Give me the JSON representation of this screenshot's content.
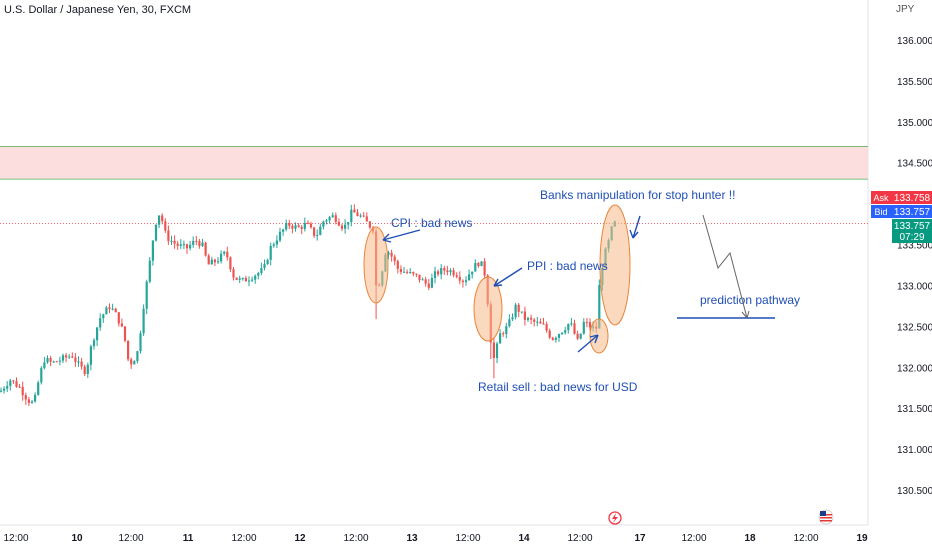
{
  "symbol_title": "U.S. Dollar / Japanese Yen, 30, FXCM",
  "currency_label": "JPY",
  "colors": {
    "up": "#26a69a",
    "down": "#ef5350",
    "annotation": "#1f4fb5",
    "highlight_fill": "#f6b98a",
    "highlight_stroke": "#e8863c",
    "resistance_zone": "#fcdede",
    "ask": "#f23645",
    "bid": "#2962ff",
    "last": "#089981"
  },
  "chart_data": {
    "type": "candlestick",
    "title": "U.S. Dollar / Japanese Yen, 30, FXCM",
    "y_axis": {
      "ticks": [
        "136.000",
        "135.500",
        "135.000",
        "134.500",
        "133.500",
        "133.000",
        "132.500",
        "132.000",
        "131.500",
        "131.000",
        "130.500"
      ],
      "range": [
        130.3,
        136.3
      ]
    },
    "x_axis": {
      "ticks": [
        "12:00",
        "10",
        "12:00",
        "11",
        "12:00",
        "12",
        "12:00",
        "13",
        "12:00",
        "14",
        "12:00",
        "17",
        "12:00",
        "18",
        "12:00",
        "19"
      ]
    },
    "price_path": [
      [
        0,
        131.7
      ],
      [
        10,
        131.85
      ],
      [
        20,
        131.75
      ],
      [
        28,
        131.6
      ],
      [
        34,
        131.55
      ],
      [
        38,
        131.8
      ],
      [
        44,
        132.1
      ],
      [
        52,
        132.05
      ],
      [
        62,
        132.1
      ],
      [
        72,
        132.15
      ],
      [
        80,
        132.0
      ],
      [
        86,
        131.95
      ],
      [
        92,
        132.3
      ],
      [
        100,
        132.6
      ],
      [
        110,
        132.75
      ],
      [
        118,
        132.6
      ],
      [
        124,
        132.4
      ],
      [
        128,
        132.1
      ],
      [
        132,
        132.05
      ],
      [
        138,
        132.2
      ],
      [
        144,
        132.8
      ],
      [
        150,
        133.3
      ],
      [
        155,
        133.75
      ],
      [
        160,
        133.9
      ],
      [
        166,
        133.6
      ],
      [
        176,
        133.5
      ],
      [
        186,
        133.45
      ],
      [
        196,
        133.55
      ],
      [
        202,
        133.5
      ],
      [
        208,
        133.25
      ],
      [
        216,
        133.3
      ],
      [
        226,
        133.4
      ],
      [
        234,
        133.1
      ],
      [
        242,
        133.05
      ],
      [
        250,
        133.1
      ],
      [
        258,
        133.15
      ],
      [
        264,
        133.2
      ],
      [
        270,
        133.45
      ],
      [
        278,
        133.6
      ],
      [
        288,
        133.75
      ],
      [
        298,
        133.7
      ],
      [
        306,
        133.75
      ],
      [
        316,
        133.6
      ],
      [
        324,
        133.8
      ],
      [
        334,
        133.85
      ],
      [
        344,
        133.7
      ],
      [
        352,
        133.9
      ],
      [
        360,
        133.85
      ],
      [
        368,
        133.75
      ],
      [
        373,
        133.7
      ],
      [
        376,
        133.0
      ],
      [
        380,
        133.05
      ],
      [
        386,
        133.45
      ],
      [
        392,
        133.35
      ],
      [
        398,
        133.2
      ],
      [
        408,
        133.15
      ],
      [
        418,
        133.1
      ],
      [
        428,
        133.0
      ],
      [
        436,
        133.15
      ],
      [
        446,
        133.2
      ],
      [
        456,
        133.15
      ],
      [
        464,
        133.05
      ],
      [
        472,
        133.2
      ],
      [
        480,
        133.3
      ],
      [
        486,
        133.1
      ],
      [
        490,
        132.4
      ],
      [
        494,
        132.1
      ],
      [
        500,
        132.4
      ],
      [
        508,
        132.5
      ],
      [
        516,
        132.75
      ],
      [
        524,
        132.6
      ],
      [
        534,
        132.55
      ],
      [
        544,
        132.5
      ],
      [
        552,
        132.35
      ],
      [
        562,
        132.45
      ],
      [
        570,
        132.55
      ],
      [
        578,
        132.3
      ],
      [
        584,
        132.55
      ],
      [
        590,
        132.5
      ],
      [
        596,
        132.45
      ],
      [
        600,
        133.1
      ],
      [
        604,
        133.35
      ],
      [
        608,
        133.5
      ],
      [
        612,
        133.7
      ],
      [
        616,
        133.78
      ]
    ],
    "horizontal_zone": [
      134.3,
      134.7
    ],
    "current_price_line": 133.757,
    "price_tags": [
      {
        "label": "Ask",
        "value": "133.758"
      },
      {
        "label": "Bid",
        "value": "133.757"
      },
      {
        "label": "",
        "value": "133.757",
        "sub": "07:29"
      }
    ],
    "annotations": [
      "CPI : bad news",
      "PPI : bad news",
      "Banks manipulation for stop hunter !!",
      "Retail sell : bad news for USD",
      "prediction pathway"
    ]
  }
}
